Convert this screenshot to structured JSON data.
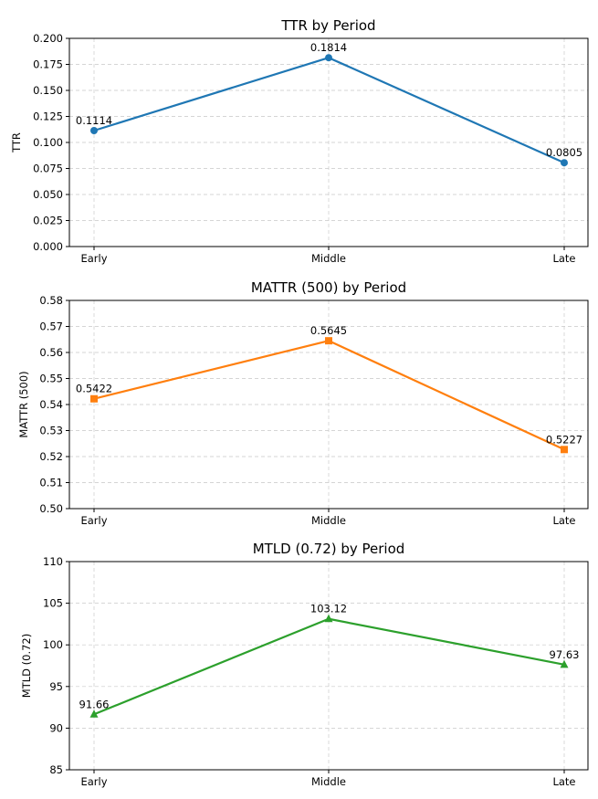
{
  "chart_data": [
    {
      "type": "line",
      "title": "TTR by Period",
      "xlabel": "",
      "ylabel": "TTR",
      "categories": [
        "Early",
        "Middle",
        "Late"
      ],
      "series": [
        {
          "values": [
            0.1114,
            0.1814,
            0.0805
          ],
          "color": "#1f77b4",
          "marker": "circle"
        }
      ],
      "data_labels": [
        "0.1114",
        "0.1814",
        "0.0805"
      ],
      "ylim": [
        0,
        0.2
      ],
      "yticks": [
        0,
        0.025,
        0.05,
        0.075,
        0.1,
        0.125,
        0.15,
        0.175,
        0.2
      ],
      "ytick_labels": [
        "0.000",
        "0.025",
        "0.050",
        "0.075",
        "0.100",
        "0.125",
        "0.150",
        "0.175",
        "0.200"
      ],
      "grid": true
    },
    {
      "type": "line",
      "title": "MATTR (500) by Period",
      "xlabel": "",
      "ylabel": "MATTR (500)",
      "categories": [
        "Early",
        "Middle",
        "Late"
      ],
      "series": [
        {
          "values": [
            0.5422,
            0.5645,
            0.5227
          ],
          "color": "#ff7f0e",
          "marker": "square"
        }
      ],
      "data_labels": [
        "0.5422",
        "0.5645",
        "0.5227"
      ],
      "ylim": [
        0.5,
        0.58
      ],
      "yticks": [
        0.5,
        0.51,
        0.52,
        0.53,
        0.54,
        0.55,
        0.56,
        0.57,
        0.58
      ],
      "ytick_labels": [
        "0.50",
        "0.51",
        "0.52",
        "0.53",
        "0.54",
        "0.55",
        "0.56",
        "0.57",
        "0.58"
      ],
      "grid": true
    },
    {
      "type": "line",
      "title": "MTLD (0.72) by Period",
      "xlabel": "",
      "ylabel": "MTLD (0.72)",
      "categories": [
        "Early",
        "Middle",
        "Late"
      ],
      "series": [
        {
          "values": [
            91.66,
            103.12,
            97.63
          ],
          "color": "#2ca02c",
          "marker": "triangle"
        }
      ],
      "data_labels": [
        "91.66",
        "103.12",
        "97.63"
      ],
      "ylim": [
        85,
        110
      ],
      "yticks": [
        85,
        90,
        95,
        100,
        105,
        110
      ],
      "ytick_labels": [
        "85",
        "90",
        "95",
        "100",
        "105",
        "110"
      ],
      "grid": true
    }
  ]
}
